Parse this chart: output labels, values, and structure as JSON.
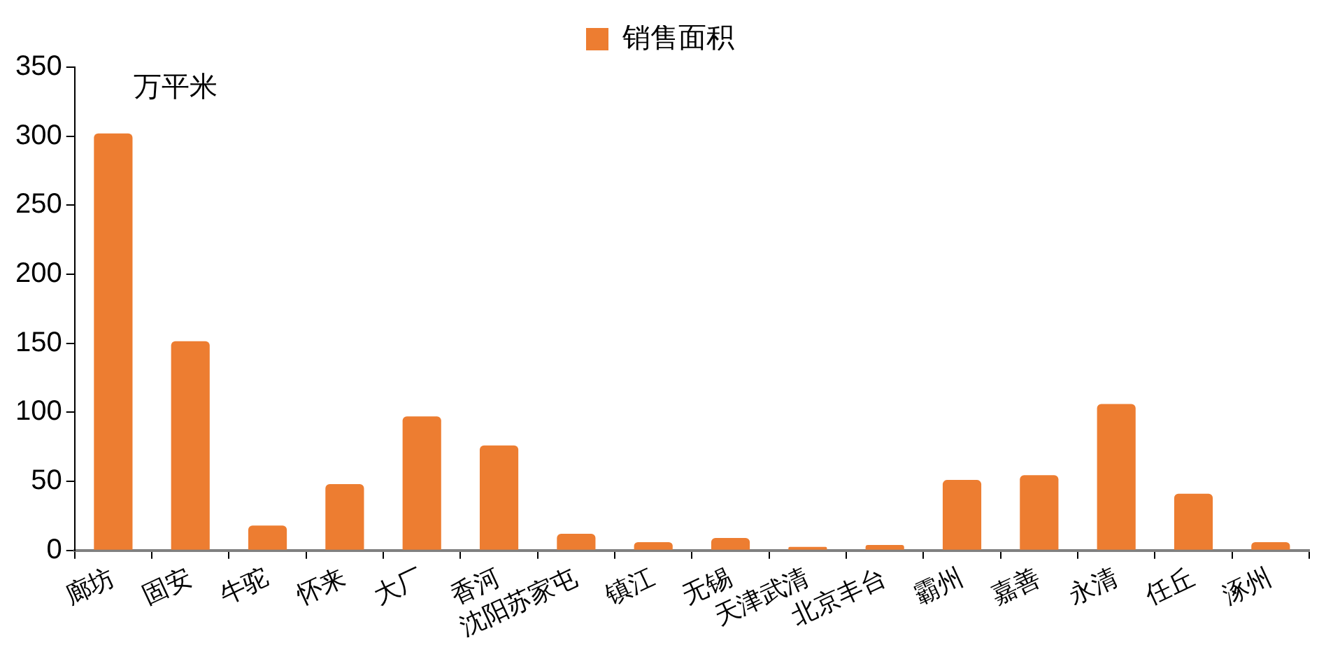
{
  "chart_data": {
    "type": "bar",
    "ylabel": "万平米",
    "categories": [
      "廊坊",
      "固安",
      "牛驼",
      "怀来",
      "大厂",
      "香河",
      "沈阳苏家屯",
      "镇江",
      "无锡",
      "天津武清",
      "北京丰台",
      "霸州",
      "嘉善",
      "永清",
      "任丘",
      "涿州"
    ],
    "series": [
      {
        "name": "销售面积",
        "color": "#ed7d31",
        "values": [
          302,
          151.5,
          18,
          48,
          97,
          76,
          12,
          6,
          9,
          2.5,
          4,
          51,
          54.5,
          106,
          41,
          6
        ]
      }
    ],
    "ylim": [
      0,
      350
    ],
    "yticks": [
      0,
      50,
      100,
      150,
      200,
      250,
      300,
      350
    ],
    "grid": false,
    "legend": "top"
  }
}
